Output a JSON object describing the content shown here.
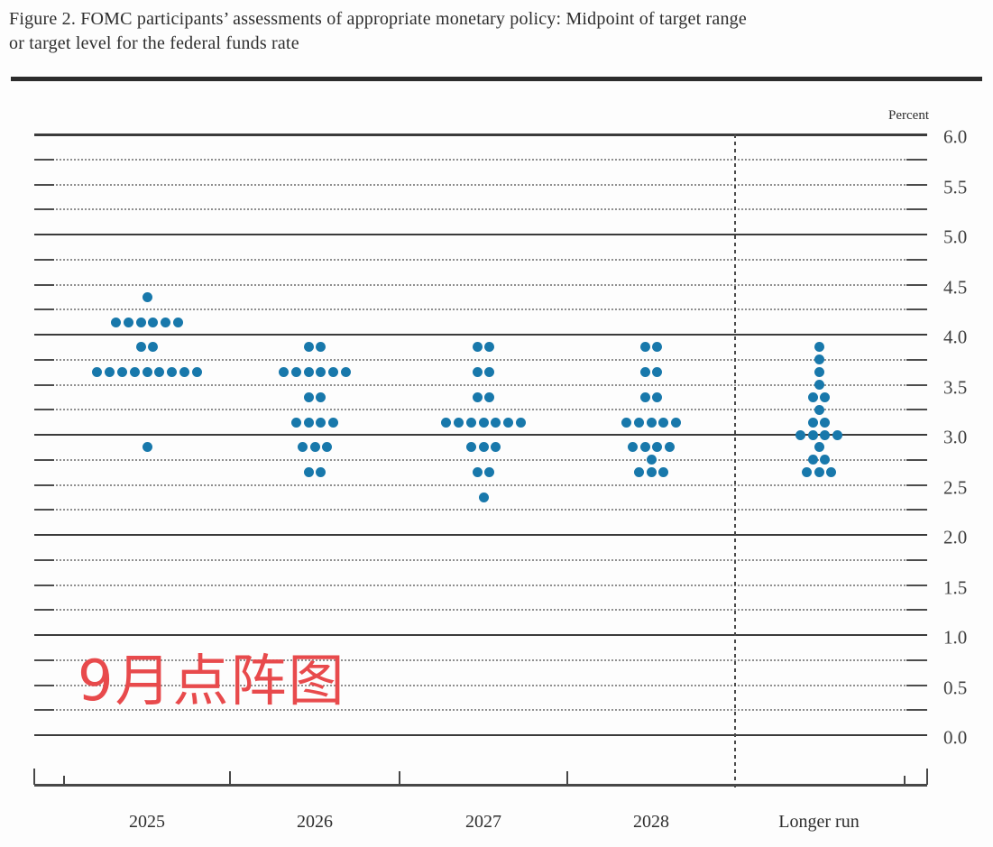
{
  "figure": {
    "title_line1": "Figure 2. FOMC participants’ assessments of appropriate monetary policy: Midpoint of target range",
    "title_line2": "or target level for the federal funds rate",
    "unit_label": "Percent",
    "annotation_text": "9月点阵图",
    "annotation_color": "#e84a4c"
  },
  "chart_data": {
    "type": "scatter",
    "title": "FOMC participants’ assessments of appropriate monetary policy: Midpoint of target range or target level for the federal funds rate",
    "ylabel": "Percent",
    "ylim": [
      0.0,
      6.0
    ],
    "ytick_label_step": 0.5,
    "gridline_step": 0.25,
    "grid": "solid lines at integers, dotted lines at quarter points",
    "legend_position": "none",
    "dot_color": "#1878ab",
    "ytick_labels": [
      "6.0",
      "5.5",
      "5.0",
      "4.5",
      "4.0",
      "3.5",
      "3.0",
      "2.5",
      "2.0",
      "1.5",
      "1.0",
      "0.5",
      "0.0"
    ],
    "categories": [
      "2025",
      "2026",
      "2027",
      "2028",
      "Longer run"
    ],
    "series": [
      {
        "name": "2025",
        "dots": [
          {
            "rate": 4.375,
            "count": 1
          },
          {
            "rate": 4.125,
            "count": 6
          },
          {
            "rate": 3.875,
            "count": 2
          },
          {
            "rate": 3.625,
            "count": 9
          },
          {
            "rate": 2.875,
            "count": 1
          }
        ]
      },
      {
        "name": "2026",
        "dots": [
          {
            "rate": 3.875,
            "count": 2
          },
          {
            "rate": 3.625,
            "count": 6
          },
          {
            "rate": 3.375,
            "count": 2
          },
          {
            "rate": 3.125,
            "count": 4
          },
          {
            "rate": 2.875,
            "count": 3
          },
          {
            "rate": 2.625,
            "count": 2
          }
        ]
      },
      {
        "name": "2027",
        "dots": [
          {
            "rate": 3.875,
            "count": 2
          },
          {
            "rate": 3.625,
            "count": 2
          },
          {
            "rate": 3.375,
            "count": 2
          },
          {
            "rate": 3.125,
            "count": 7
          },
          {
            "rate": 2.875,
            "count": 3
          },
          {
            "rate": 2.625,
            "count": 2
          },
          {
            "rate": 2.375,
            "count": 1
          }
        ]
      },
      {
        "name": "2028",
        "dots": [
          {
            "rate": 3.875,
            "count": 2
          },
          {
            "rate": 3.625,
            "count": 2
          },
          {
            "rate": 3.375,
            "count": 2
          },
          {
            "rate": 3.125,
            "count": 5
          },
          {
            "rate": 2.875,
            "count": 4
          },
          {
            "rate": 2.75,
            "count": 1
          },
          {
            "rate": 2.625,
            "count": 3
          }
        ]
      },
      {
        "name": "Longer run",
        "dots": [
          {
            "rate": 3.875,
            "count": 1
          },
          {
            "rate": 3.75,
            "count": 1
          },
          {
            "rate": 3.625,
            "count": 1
          },
          {
            "rate": 3.5,
            "count": 1
          },
          {
            "rate": 3.375,
            "count": 2
          },
          {
            "rate": 3.25,
            "count": 1
          },
          {
            "rate": 3.125,
            "count": 2
          },
          {
            "rate": 3.0,
            "count": 4
          },
          {
            "rate": 2.875,
            "count": 1
          },
          {
            "rate": 2.75,
            "count": 2
          },
          {
            "rate": 2.625,
            "count": 3
          }
        ]
      }
    ]
  }
}
